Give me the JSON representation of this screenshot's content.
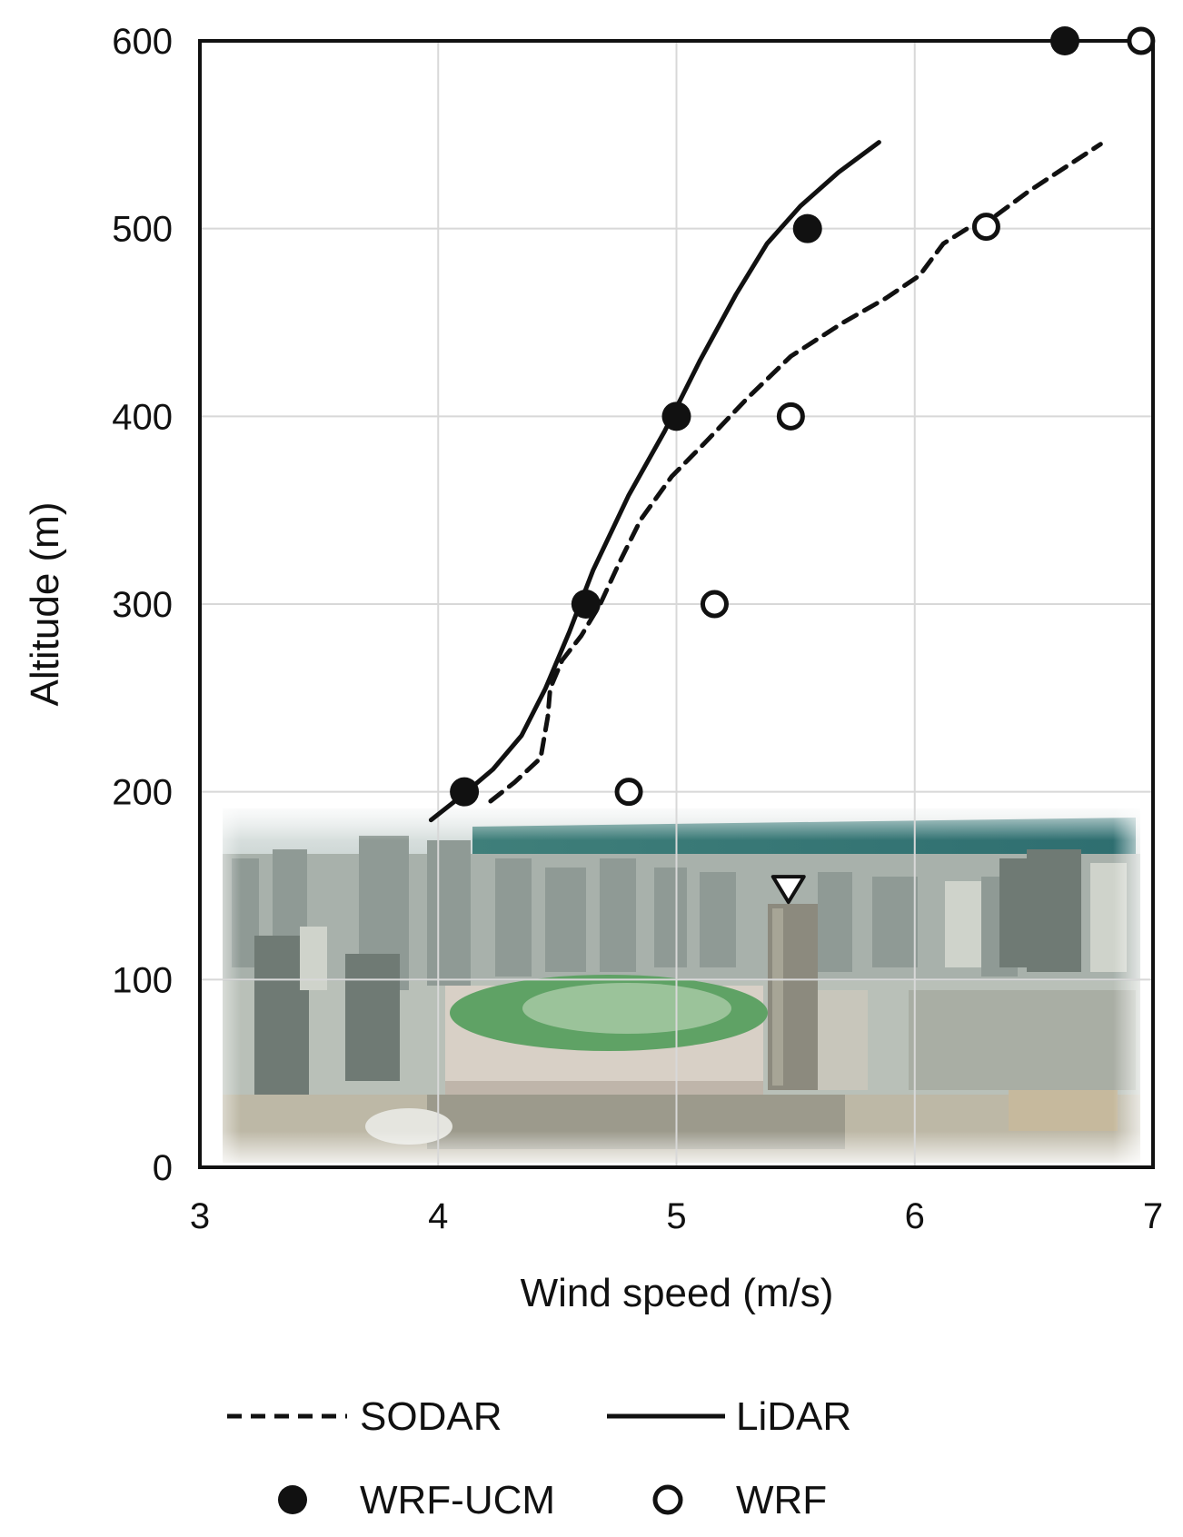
{
  "chart_data": {
    "type": "line",
    "xlabel": "Wind speed (m/s)",
    "ylabel": "Altitude (m)",
    "xlim": [
      3,
      7
    ],
    "ylim": [
      0,
      600
    ],
    "xticks": [
      3,
      4,
      5,
      6,
      7
    ],
    "yticks": [
      0,
      100,
      200,
      300,
      400,
      500,
      600
    ],
    "grid": true,
    "legend_position": "bottom",
    "series": [
      {
        "name": "SODAR",
        "style": "dashed",
        "color": "#111111",
        "points": [
          [
            4.22,
            195
          ],
          [
            4.32,
            205
          ],
          [
            4.43,
            218
          ],
          [
            4.46,
            240
          ],
          [
            4.47,
            255
          ],
          [
            4.52,
            270
          ],
          [
            4.6,
            283
          ],
          [
            4.68,
            300
          ],
          [
            4.76,
            322
          ],
          [
            4.85,
            345
          ],
          [
            4.98,
            368
          ],
          [
            5.12,
            386
          ],
          [
            5.3,
            410
          ],
          [
            5.48,
            432
          ],
          [
            5.7,
            450
          ],
          [
            5.88,
            463
          ],
          [
            6.02,
            475
          ],
          [
            6.12,
            492
          ],
          [
            6.22,
            500
          ],
          [
            6.32,
            505
          ],
          [
            6.48,
            520
          ],
          [
            6.78,
            545
          ]
        ]
      },
      {
        "name": "LiDAR",
        "style": "solid",
        "color": "#111111",
        "points": [
          [
            3.97,
            185
          ],
          [
            4.1,
            198
          ],
          [
            4.23,
            212
          ],
          [
            4.35,
            230
          ],
          [
            4.45,
            255
          ],
          [
            4.55,
            285
          ],
          [
            4.65,
            318
          ],
          [
            4.8,
            358
          ],
          [
            4.95,
            392
          ],
          [
            5.1,
            430
          ],
          [
            5.25,
            465
          ],
          [
            5.38,
            492
          ],
          [
            5.52,
            512
          ],
          [
            5.68,
            530
          ],
          [
            5.85,
            546
          ]
        ]
      },
      {
        "name": "WRF-UCM",
        "marker": "filled-circle",
        "color": "#111111",
        "points": [
          [
            4.11,
            200
          ],
          [
            4.62,
            300
          ],
          [
            5.0,
            400
          ],
          [
            5.55,
            500
          ],
          [
            6.63,
            600
          ]
        ]
      },
      {
        "name": "WRF",
        "marker": "open-circle",
        "color": "#111111",
        "points": [
          [
            4.8,
            200
          ],
          [
            5.16,
            300
          ],
          [
            5.48,
            400
          ],
          [
            6.3,
            501
          ],
          [
            6.95,
            600
          ]
        ]
      }
    ],
    "annotation_marker": {
      "shape": "triangle-down",
      "x": 5.47,
      "y": 148
    },
    "background_image": "aerial-city-photo"
  }
}
